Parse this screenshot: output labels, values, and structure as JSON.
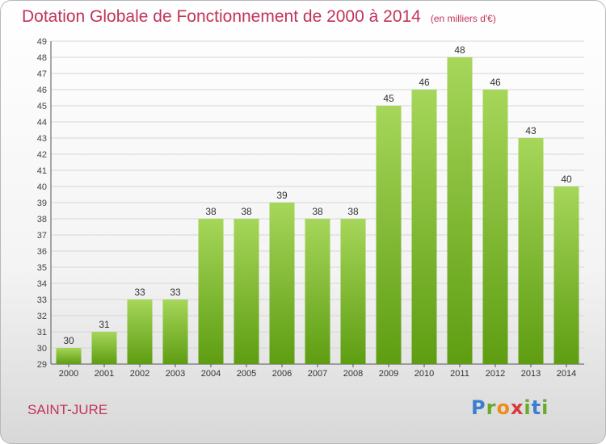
{
  "header": {
    "title": "Dotation Globale de Fonctionnement de 2000 à 2014",
    "unit": "(en milliers d'€)"
  },
  "footer": {
    "commune": "SAINT-JURE",
    "logo": [
      "P",
      "r",
      "o",
      "x",
      "i",
      "t",
      "i"
    ]
  },
  "colors": {
    "title": "#c2335a",
    "bar_top": "#a6d65a",
    "bar_bottom": "#5e9d12",
    "grid": "#d6d6d6"
  },
  "chart_data": {
    "type": "bar",
    "title": "Dotation Globale de Fonctionnement de 2000 à 2014",
    "subtitle": "(en milliers d'€)",
    "categories": [
      "2000",
      "2001",
      "2002",
      "2003",
      "2004",
      "2005",
      "2006",
      "2007",
      "2008",
      "2009",
      "2010",
      "2011",
      "2012",
      "2013",
      "2014"
    ],
    "values": [
      30,
      31,
      33,
      33,
      38,
      38,
      39,
      38,
      38,
      45,
      46,
      48,
      46,
      43,
      40
    ],
    "ylim": [
      29,
      49
    ],
    "yticks": [
      29,
      30,
      31,
      32,
      33,
      34,
      35,
      36,
      37,
      38,
      39,
      40,
      41,
      42,
      43,
      44,
      45,
      46,
      47,
      48,
      49
    ],
    "grid": true,
    "legend": "none",
    "data_labels": true
  }
}
